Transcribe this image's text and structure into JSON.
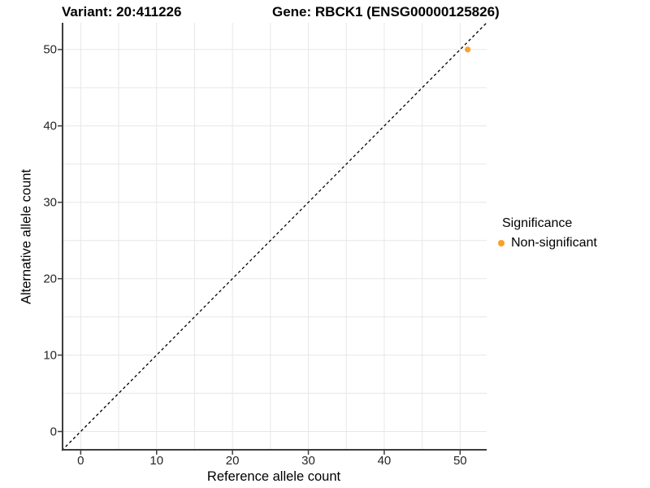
{
  "titles": {
    "variant": "Variant: 20:411226",
    "gene": "Gene: RBCK1 (ENSG00000125826)"
  },
  "chart_data": {
    "type": "scatter",
    "xlabel": "Reference allele count",
    "ylabel": "Alternative allele count",
    "xlim": [
      -2.5,
      53.5
    ],
    "ylim": [
      -2.5,
      53.5
    ],
    "x_ticks": [
      0,
      10,
      20,
      30,
      40,
      50
    ],
    "y_ticks": [
      0,
      10,
      20,
      30,
      40,
      50
    ],
    "grid_interval": 5,
    "grid_on": true,
    "points": [
      {
        "x": 51,
        "y": 50,
        "series": "Non-significant"
      }
    ],
    "reference_line": {
      "type": "identity",
      "style": "dashed",
      "equation": "y = x"
    },
    "legend": {
      "title": "Significance",
      "position": "right",
      "entries": [
        {
          "label": "Non-significant",
          "color": "#FAA028"
        }
      ]
    },
    "colors": {
      "point": "#FAA028",
      "grid": "#E7E7E7",
      "axis": "#3D3D3D",
      "reference_line": "#000000",
      "background": "#FFFFFF"
    }
  }
}
